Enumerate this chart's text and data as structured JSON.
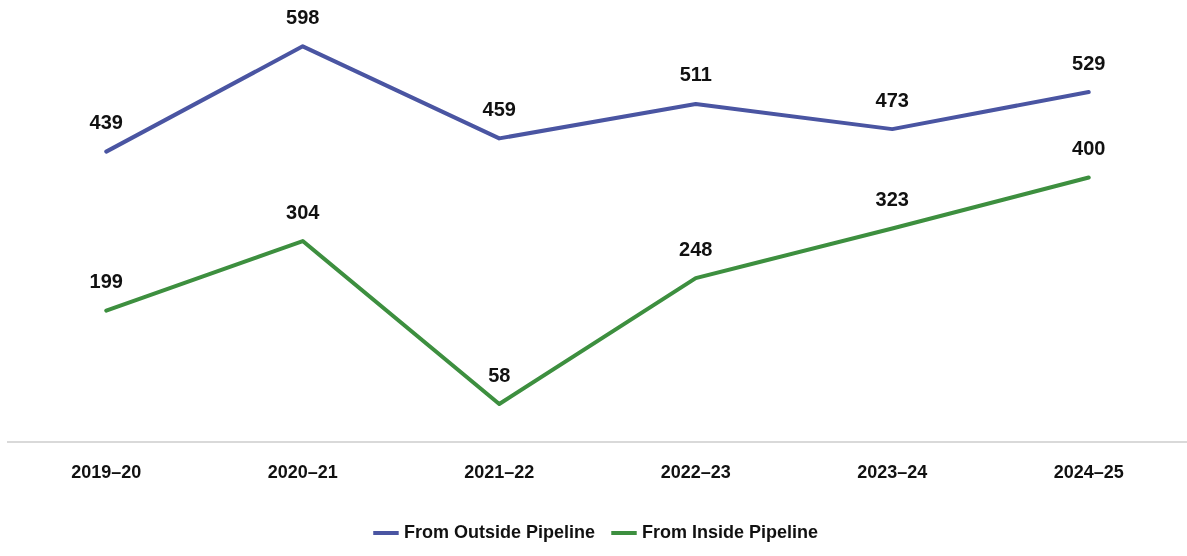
{
  "chart_data": {
    "type": "line",
    "categories": [
      "2019–20",
      "2020–21",
      "2021–22",
      "2022–23",
      "2023–24",
      "2024–25"
    ],
    "series": [
      {
        "name": "From Outside Pipeline",
        "color": "#4a55a2",
        "values": [
          439,
          598,
          459,
          511,
          473,
          529
        ]
      },
      {
        "name": "From Inside Pipeline",
        "color": "#3d8f3f",
        "values": [
          199,
          304,
          58,
          248,
          323,
          400
        ]
      }
    ],
    "data_labels": true,
    "legend": "bottom",
    "grid": false,
    "marker": "none",
    "line_style": "solid"
  }
}
